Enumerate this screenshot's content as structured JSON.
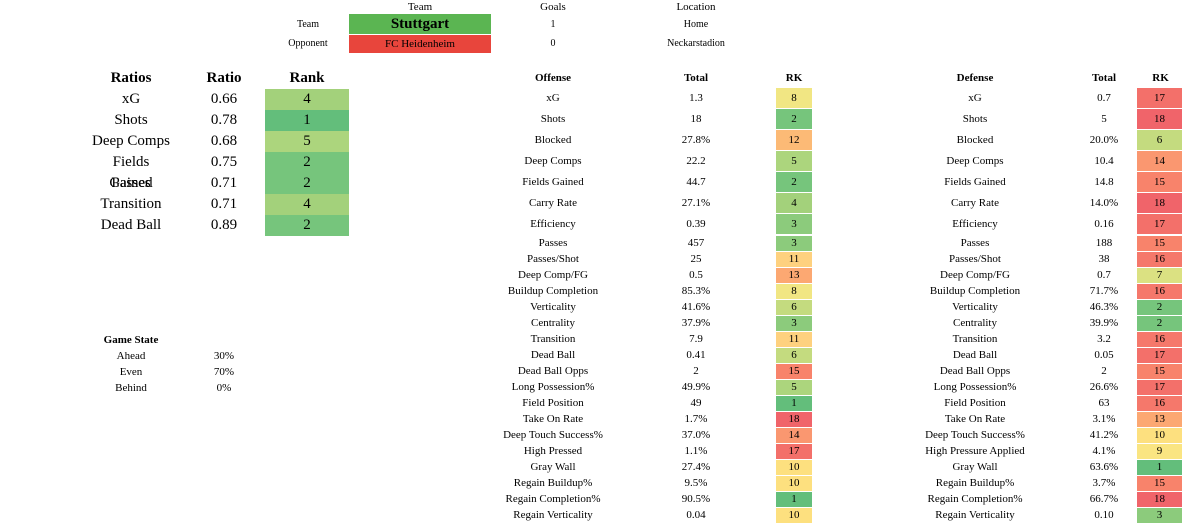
{
  "header": {
    "col_team": "Team",
    "col_goals": "Goals",
    "col_location": "Location",
    "team_label": "Team",
    "opponent_label": "Opponent",
    "team_name": "Stuttgart",
    "opponent_name": "FC Heidenheim",
    "team_goals": "1",
    "opponent_goals": "0",
    "team_location": "Home",
    "opponent_location": "Neckarstadion",
    "team_color": "#5bb552",
    "opponent_color": "#e8453c"
  },
  "ratios": {
    "headers": [
      "Ratios",
      "Ratio",
      "Rank"
    ],
    "rows": [
      {
        "name": "xG",
        "ratio": "0.66",
        "rank": "4",
        "color": "#a3d17b"
      },
      {
        "name": "Shots",
        "ratio": "0.78",
        "rank": "1",
        "color": "#63be7b"
      },
      {
        "name": "Deep Comps",
        "ratio": "0.68",
        "rank": "5",
        "color": "#acd57d"
      },
      {
        "name": "Fields Gained",
        "ratio": "0.75",
        "rank": "2",
        "color": "#76c57c"
      },
      {
        "name": "Passes",
        "ratio": "0.71",
        "rank": "2",
        "color": "#76c57c"
      },
      {
        "name": "Transition",
        "ratio": "0.71",
        "rank": "4",
        "color": "#a3d17b"
      },
      {
        "name": "Dead Ball",
        "ratio": "0.89",
        "rank": "2",
        "color": "#76c57c"
      }
    ]
  },
  "game_state": {
    "title": "Game State",
    "rows": [
      {
        "label": "Ahead",
        "value": "30%"
      },
      {
        "label": "Even",
        "value": "70%"
      },
      {
        "label": "Behind",
        "value": "0%"
      }
    ]
  },
  "offense": {
    "headers": [
      "Offense",
      "Total",
      "RK"
    ],
    "rows": [
      {
        "name": "xG",
        "total": "1.3",
        "rk": "8",
        "color": "#f1e683"
      },
      {
        "name": "Shots",
        "total": "18",
        "rk": "2",
        "color": "#76c57c"
      },
      {
        "name": "Blocked",
        "total": "27.8%",
        "rk": "12",
        "color": "#fcba76"
      },
      {
        "name": "Deep Comps",
        "total": "22.2",
        "rk": "5",
        "color": "#acd57d"
      },
      {
        "name": "Fields Gained",
        "total": "44.7",
        "rk": "2",
        "color": "#76c57c"
      },
      {
        "name": "Carry Rate",
        "total": "27.1%",
        "rk": "4",
        "color": "#a3d17b"
      },
      {
        "name": "Efficiency",
        "total": "0.39",
        "rk": "3",
        "color": "#8ccb7c"
      },
      {
        "name": "Passes",
        "total": "457",
        "rk": "3",
        "color": "#8ccb7c"
      },
      {
        "name": "Passes/Shot",
        "total": "25",
        "rk": "11",
        "color": "#fed17f"
      },
      {
        "name": "Deep Comp/FG",
        "total": "0.5",
        "rk": "13",
        "color": "#fca872"
      },
      {
        "name": "Buildup Completion",
        "total": "85.3%",
        "rk": "8",
        "color": "#f1e683"
      },
      {
        "name": "Verticality",
        "total": "41.6%",
        "rk": "6",
        "color": "#c4db7f"
      },
      {
        "name": "Centrality",
        "total": "37.9%",
        "rk": "3",
        "color": "#8ccb7c"
      },
      {
        "name": "Transition",
        "total": "7.9",
        "rk": "11",
        "color": "#fed17f"
      },
      {
        "name": "Dead Ball",
        "total": "0.41",
        "rk": "6",
        "color": "#c4db7f"
      },
      {
        "name": "Dead Ball Opps",
        "total": "2",
        "rk": "15",
        "color": "#f8836b"
      },
      {
        "name": "Long Possession%",
        "total": "49.9%",
        "rk": "5",
        "color": "#acd57d"
      },
      {
        "name": "Field Position",
        "total": "49",
        "rk": "1",
        "color": "#63be7b"
      },
      {
        "name": "Take On Rate",
        "total": "1.7%",
        "rk": "18",
        "color": "#f0646a"
      },
      {
        "name": "Deep Touch Success%",
        "total": "37.0%",
        "rk": "14",
        "color": "#fa9770"
      },
      {
        "name": "High Pressed",
        "total": "1.1%",
        "rk": "17",
        "color": "#f3706a"
      },
      {
        "name": "Gray Wall",
        "total": "27.4%",
        "rk": "10",
        "color": "#fde07f"
      },
      {
        "name": "Regain Buildup%",
        "total": "9.5%",
        "rk": "10",
        "color": "#fde07f"
      },
      {
        "name": "Regain Completion%",
        "total": "90.5%",
        "rk": "1",
        "color": "#63be7b"
      },
      {
        "name": "Regain Verticality",
        "total": "0.04",
        "rk": "10",
        "color": "#fde07f"
      }
    ]
  },
  "defense": {
    "headers": [
      "Defense",
      "Total",
      "RK"
    ],
    "rows": [
      {
        "name": "xG",
        "total": "0.7",
        "rk": "17",
        "color": "#f3706a"
      },
      {
        "name": "Shots",
        "total": "5",
        "rk": "18",
        "color": "#f0646a"
      },
      {
        "name": "Blocked",
        "total": "20.0%",
        "rk": "6",
        "color": "#c4db7f"
      },
      {
        "name": "Deep Comps",
        "total": "10.4",
        "rk": "14",
        "color": "#fa9770"
      },
      {
        "name": "Fields Gained",
        "total": "14.8",
        "rk": "15",
        "color": "#f8836b"
      },
      {
        "name": "Carry Rate",
        "total": "14.0%",
        "rk": "18",
        "color": "#f0646a"
      },
      {
        "name": "Efficiency",
        "total": "0.16",
        "rk": "17",
        "color": "#f3706a"
      },
      {
        "name": "Passes",
        "total": "188",
        "rk": "15",
        "color": "#f8836b"
      },
      {
        "name": "Passes/Shot",
        "total": "38",
        "rk": "16",
        "color": "#f5786b"
      },
      {
        "name": "Deep Comp/FG",
        "total": "0.7",
        "rk": "7",
        "color": "#dbe182"
      },
      {
        "name": "Buildup Completion",
        "total": "71.7%",
        "rk": "16",
        "color": "#f5786b"
      },
      {
        "name": "Verticality",
        "total": "46.3%",
        "rk": "2",
        "color": "#76c57c"
      },
      {
        "name": "Centrality",
        "total": "39.9%",
        "rk": "2",
        "color": "#76c57c"
      },
      {
        "name": "Transition",
        "total": "3.2",
        "rk": "16",
        "color": "#f5786b"
      },
      {
        "name": "Dead Ball",
        "total": "0.05",
        "rk": "17",
        "color": "#f3706a"
      },
      {
        "name": "Dead Ball Opps",
        "total": "2",
        "rk": "15",
        "color": "#f8836b"
      },
      {
        "name": "Long Possession%",
        "total": "26.6%",
        "rk": "17",
        "color": "#f3706a"
      },
      {
        "name": "Field Position",
        "total": "63",
        "rk": "16",
        "color": "#f5786b"
      },
      {
        "name": "Take On Rate",
        "total": "3.1%",
        "rk": "13",
        "color": "#fca872"
      },
      {
        "name": "Deep Touch Success%",
        "total": "41.2%",
        "rk": "10",
        "color": "#fde07f"
      },
      {
        "name": "High Pressure Applied",
        "total": "4.1%",
        "rk": "9",
        "color": "#fae582"
      },
      {
        "name": "Gray Wall",
        "total": "63.6%",
        "rk": "1",
        "color": "#63be7b"
      },
      {
        "name": "Regain Buildup%",
        "total": "3.7%",
        "rk": "15",
        "color": "#f8836b"
      },
      {
        "name": "Regain Completion%",
        "total": "66.7%",
        "rk": "18",
        "color": "#f0646a"
      },
      {
        "name": "Regain Verticality",
        "total": "0.10",
        "rk": "3",
        "color": "#8ccb7c"
      }
    ]
  }
}
